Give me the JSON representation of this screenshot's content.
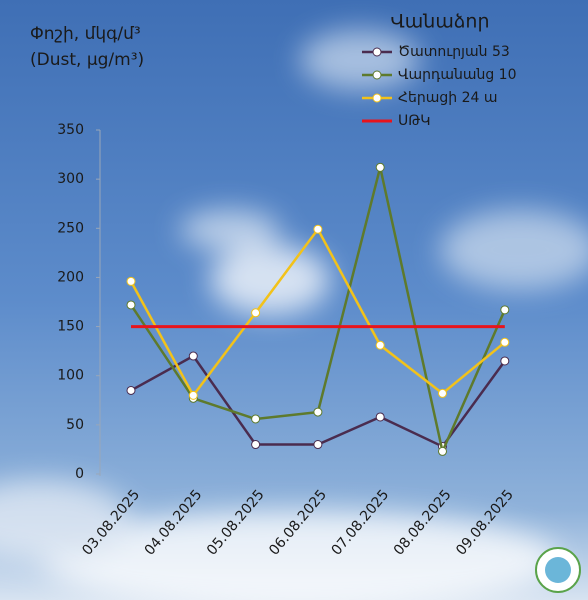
{
  "chart_data": {
    "type": "line",
    "title": "Փոշի, մկգ/մ³",
    "subtitle": "(Dust, µg/m³)",
    "legend_title": "Վանաձոր",
    "categories": [
      "03.08.2025",
      "04.08.2025",
      "05.08.2025",
      "06.08.2025",
      "07.08.2025",
      "08.08.2025",
      "09.08.2025"
    ],
    "series": [
      {
        "name": "Ծատուրյան 53",
        "color": "#4a2c4f",
        "values": [
          85,
          120,
          30,
          30,
          58,
          28,
          115
        ]
      },
      {
        "name": "Վարդանանց 10",
        "color": "#5e7a2c",
        "values": [
          172,
          77,
          56,
          63,
          312,
          23,
          167
        ]
      },
      {
        "name": "Հերացի 24 ա",
        "color": "#f2c21a",
        "values": [
          196,
          80,
          164,
          249,
          131,
          82,
          134
        ]
      },
      {
        "name": "ՍԹԿ",
        "color": "#e8141c",
        "values": [
          150,
          150,
          150,
          150,
          150,
          150,
          150
        ]
      }
    ],
    "ylim": [
      0,
      350
    ],
    "yticks": [
      0,
      50,
      100,
      150,
      200,
      250,
      300,
      350
    ]
  }
}
